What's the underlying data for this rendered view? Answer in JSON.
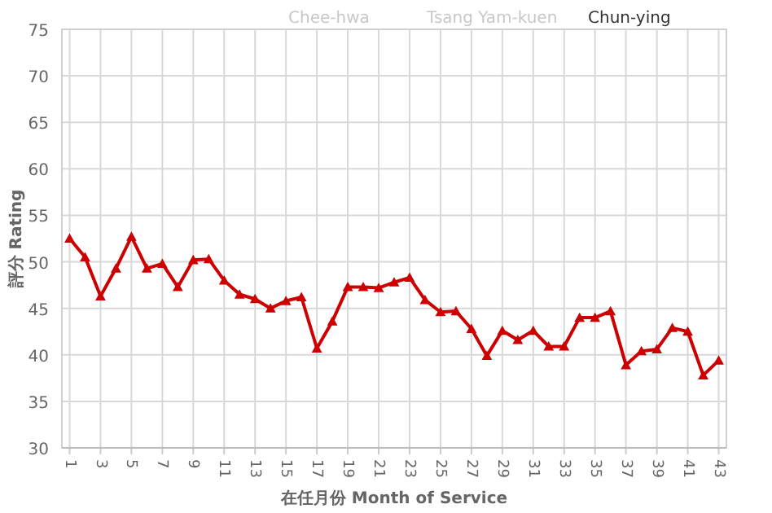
{
  "chart_data": {
    "type": "line",
    "xlabel": "在任月份 Month of Service",
    "ylabel": "評分 Rating",
    "x": [
      1,
      2,
      3,
      4,
      5,
      6,
      7,
      8,
      9,
      10,
      11,
      12,
      13,
      14,
      15,
      16,
      17,
      18,
      19,
      20,
      21,
      22,
      23,
      24,
      25,
      26,
      27,
      28,
      29,
      30,
      31,
      32,
      33,
      34,
      35,
      36,
      37,
      38,
      39,
      40,
      41,
      42,
      43
    ],
    "series": [
      {
        "name": "Chun-ying",
        "color": "#cc0000",
        "values": [
          52.5,
          50.5,
          46.3,
          49.3,
          52.7,
          49.3,
          49.8,
          47.3,
          50.2,
          50.3,
          48.0,
          46.5,
          46.0,
          45.0,
          45.8,
          46.2,
          40.7,
          43.6,
          47.3,
          47.3,
          47.2,
          47.8,
          48.3,
          45.9,
          44.6,
          44.7,
          42.8,
          39.9,
          42.6,
          41.6,
          42.6,
          40.9,
          40.9,
          44.0,
          44.0,
          44.7,
          38.9,
          40.4,
          40.6,
          42.9,
          42.5,
          37.8,
          39.4
        ]
      }
    ],
    "xlim": [
      0.5,
      43.5
    ],
    "ylim": [
      30,
      75
    ],
    "xticks": [
      1,
      3,
      5,
      7,
      9,
      11,
      13,
      15,
      17,
      19,
      21,
      23,
      25,
      27,
      29,
      31,
      33,
      35,
      37,
      39,
      41,
      43
    ],
    "yticks": [
      30,
      35,
      40,
      45,
      50,
      55,
      60,
      65,
      70,
      75
    ],
    "grid": true,
    "marker": "triangle",
    "line_style": "solid",
    "legend": "top",
    "annotations": [
      "Chee-hwa",
      "Tsang Yam-kuen"
    ]
  }
}
